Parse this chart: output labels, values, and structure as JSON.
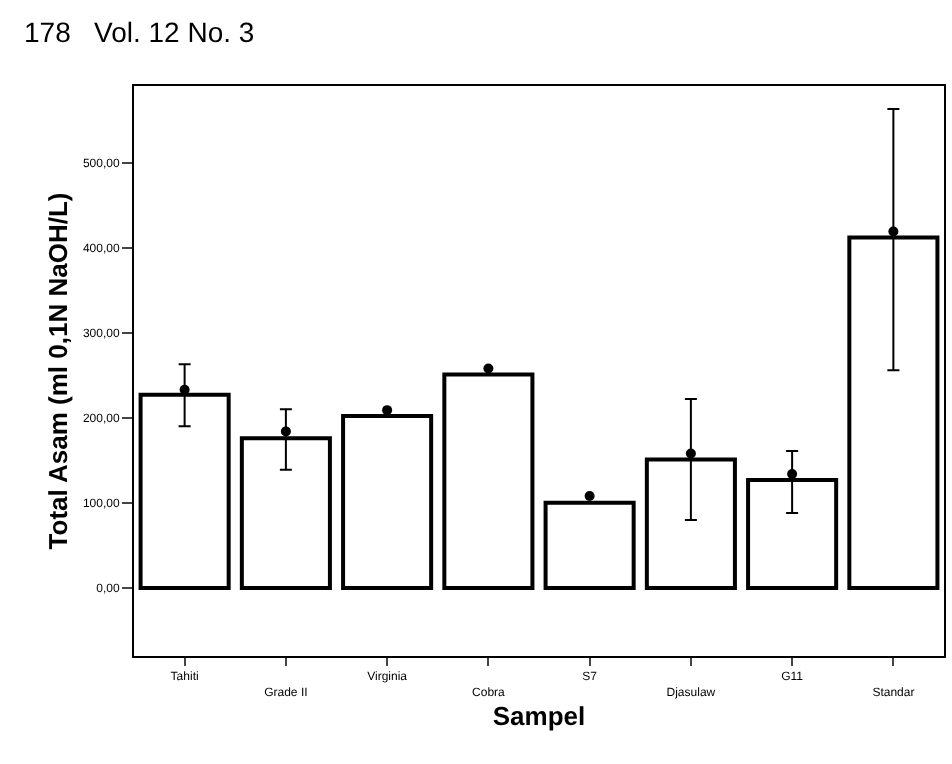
{
  "chart_data": {
    "type": "bar",
    "xlabel": "Sampel",
    "ylabel": "Total Asam (ml 0,1N NaOH/L)",
    "annotations": [
      "178   Vol. 12 No. 3"
    ],
    "categories": [
      "Tahiti",
      "Grade II",
      "Virginia",
      "Cobra",
      "S7",
      "Djasulaw",
      "G11",
      "Standar"
    ],
    "series": [
      {
        "color": "#ffffff",
        "values": [
          227,
          176,
          202,
          251,
          100,
          151,
          127,
          412
        ],
        "errors": [
          [
            190,
            263
          ],
          [
            139,
            210
          ],
          null,
          null,
          null,
          [
            80,
            222
          ],
          [
            88,
            161
          ],
          [
            256,
            563
          ]
        ]
      },
      {
        "type": "scatter",
        "color": "#000000",
        "values": [
          233,
          184,
          209,
          258,
          108,
          158,
          134,
          419
        ]
      }
    ],
    "ylim": [
      -80,
      590
    ],
    "yticks": [
      {
        "value": 0,
        "label": "0,00"
      },
      {
        "value": 100,
        "label": "100,00"
      },
      {
        "value": 200,
        "label": "200,00"
      },
      {
        "value": 300,
        "label": "300,00"
      },
      {
        "value": 400,
        "label": "400,00"
      },
      {
        "value": 500,
        "label": "500,00"
      }
    ],
    "marker": "circle"
  }
}
